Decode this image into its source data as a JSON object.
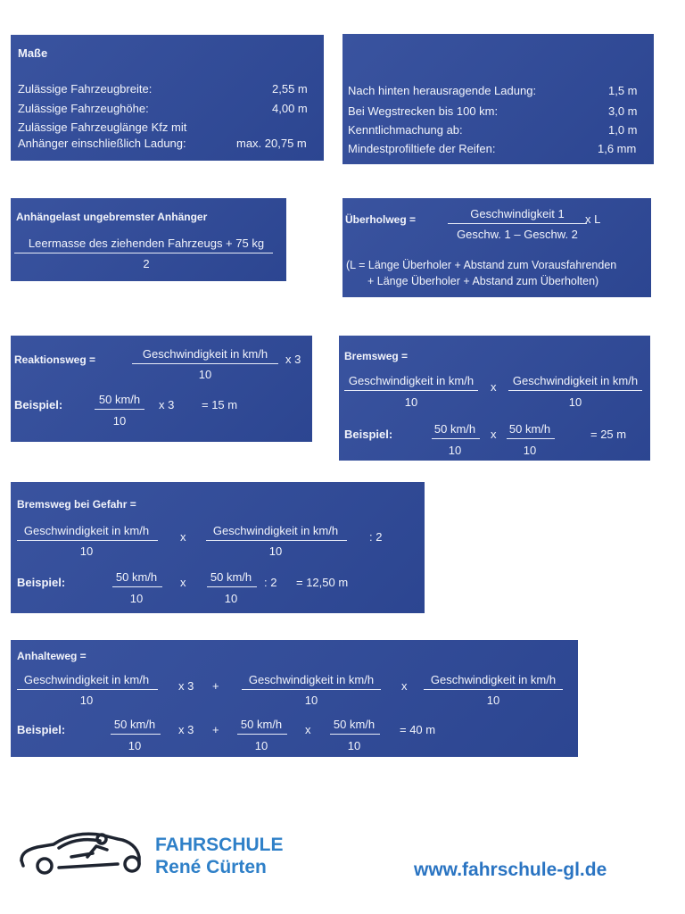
{
  "masse": {
    "title": "Maße",
    "rows": [
      {
        "label": "Zulässige Fahrzeugbreite:",
        "value": "2,55 m"
      },
      {
        "label": "Zulässige Fahrzeughöhe:",
        "value": "4,00 m"
      },
      {
        "label": "Zulässige Fahrzeuglänge Kfz mit",
        "value": ""
      },
      {
        "label": "Anhänger einschließlich Ladung:",
        "value": "max. 20,75 m"
      }
    ]
  },
  "ladung": {
    "rows": [
      {
        "label": "Nach hinten herausragende Ladung:",
        "value": "1,5 m"
      },
      {
        "label": "Bei Wegstrecken bis 100 km:",
        "value": "3,0 m"
      },
      {
        "label": "Kenntlichmachung ab:",
        "value": "1,0 m"
      },
      {
        "label": "Mindestprofiltiefe der Reifen:",
        "value": "1,6 mm"
      }
    ]
  },
  "anhaengelast": {
    "title": "Anhängelast ungebremster Anhänger",
    "numerator": "Leermasse des ziehenden Fahrzeugs + 75 kg",
    "denominator": "2"
  },
  "ueberholweg": {
    "title": "Überholweg =",
    "numerator": "Geschwindigkeit 1",
    "denominator": "Geschw. 1 – Geschw. 2",
    "factor": "x L",
    "note1": "(L = Länge Überholer + Abstand zum Vorausfahrenden",
    "note2": "+ Länge Überholer + Abstand zum Überholten)"
  },
  "reaktionsweg": {
    "title": "Reaktionsweg =",
    "numerator": "Geschwindigkeit in km/h",
    "denominator": "10",
    "factor": "x 3",
    "example_label": "Beispiel:",
    "ex_num": "50 km/h",
    "ex_den": "10",
    "ex_factor": "x 3",
    "ex_result": "= 15 m"
  },
  "bremsweg": {
    "title": "Bremsweg =",
    "num1": "Geschwindigkeit in km/h",
    "den1": "10",
    "op": "x",
    "num2": "Geschwindigkeit in km/h",
    "den2": "10",
    "example_label": "Beispiel:",
    "ex_num1": "50 km/h",
    "ex_den1": "10",
    "ex_op": "x",
    "ex_num2": "50 km/h",
    "ex_den2": "10",
    "ex_result": "= 25 m"
  },
  "gefahr": {
    "title": "Bremsweg bei Gefahr =",
    "num1": "Geschwindigkeit in km/h",
    "den1": "10",
    "op": "x",
    "num2": "Geschwindigkeit in km/h",
    "den2": "10",
    "div": ": 2",
    "example_label": "Beispiel:",
    "ex_num1": "50 km/h",
    "ex_den1": "10",
    "ex_op": "x",
    "ex_num2": "50 km/h",
    "ex_den2": "10",
    "ex_div": ": 2",
    "ex_result": "= 12,50 m"
  },
  "anhalteweg": {
    "title": "Anhalteweg =",
    "num1": "Geschwindigkeit in km/h",
    "den1": "10",
    "f1": "x 3",
    "plus": "+",
    "num2": "Geschwindigkeit in km/h",
    "den2": "10",
    "op": "x",
    "num3": "Geschwindigkeit in km/h",
    "den3": "10",
    "example_label": "Beispiel:",
    "ex_num1": "50 km/h",
    "ex_den1": "10",
    "ex_f1": "x 3",
    "ex_plus": "+",
    "ex_num2": "50 km/h",
    "ex_den2": "10",
    "ex_op": "x",
    "ex_num3": "50 km/h",
    "ex_den3": "10",
    "ex_result": "= 40 m"
  },
  "footer": {
    "school_line1": "FAHRSCHULE",
    "school_line2": "René Cürten",
    "url": "www.fahrschule-gl.de",
    "logo_icon": "car-with-driver-logo-icon",
    "brand_color": "#2f80c8"
  }
}
